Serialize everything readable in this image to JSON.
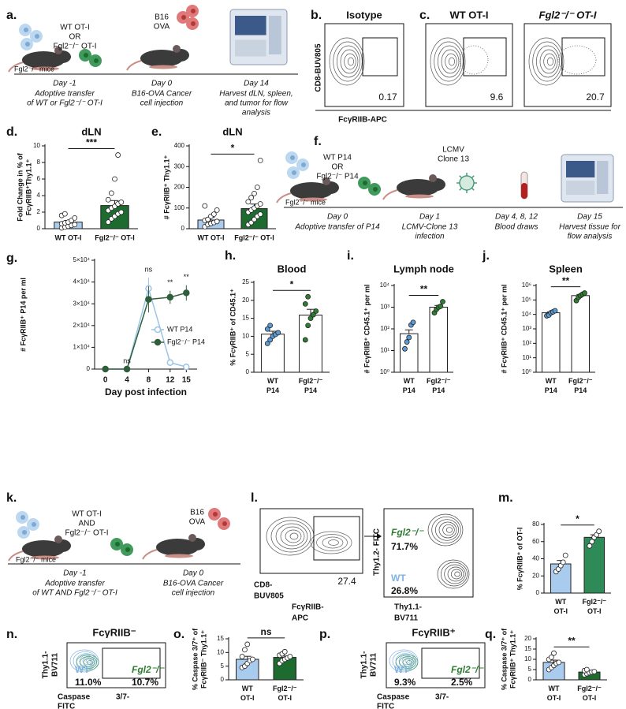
{
  "panel_labels": [
    "a.",
    "b.",
    "c.",
    "d.",
    "e.",
    "f.",
    "g.",
    "h.",
    "i.",
    "j.",
    "k.",
    "l.",
    "m.",
    "n.",
    "o.",
    "p.",
    "q."
  ],
  "schematic_a": {
    "donor": [
      "WT OT-I",
      "OR",
      "Fgl2⁻/⁻ OT-I"
    ],
    "host": "Fgl2⁻/⁻ mice",
    "tumor": [
      "B16",
      "OVA"
    ],
    "timeline": [
      {
        "day": "Day -1",
        "text": [
          "Adoptive transfer",
          "of WT or Fgl2⁻/⁻ OT-I"
        ]
      },
      {
        "day": "Day 0",
        "text": [
          "B16-OVA Cancer",
          "cell injection"
        ]
      },
      {
        "day": "Day 14",
        "text": [
          "Harvest dLN, spleen,",
          "and tumor for flow",
          "analysis"
        ]
      }
    ]
  },
  "flow_bc": {
    "ylabel": "CD8-BUV805",
    "xlabel": "FcγRIIB-APC",
    "plots": [
      {
        "title": "Isotype",
        "gate": "0.17"
      },
      {
        "title": "WT OT-I",
        "gate": "9.6"
      },
      {
        "title": "Fgl2⁻/⁻ OT-I",
        "gate": "20.7"
      }
    ]
  },
  "schematic_f": {
    "donor": [
      "WT P14",
      "OR",
      "Fgl2⁻/⁻ P14"
    ],
    "host": "Fgl2⁻/⁻ mice",
    "virus": [
      "LCMV",
      "Clone 13"
    ],
    "timeline": [
      {
        "day": "Day 0",
        "text": [
          "Adoptive transfer of P14"
        ]
      },
      {
        "day": "Day 1",
        "text": [
          "LCMV-Clone 13",
          "infection"
        ]
      },
      {
        "day": "Day 4, 8, 12",
        "text": [
          "Blood draws"
        ]
      },
      {
        "day": "Day 15",
        "text": [
          "Harvest tissue for",
          "flow analysis"
        ]
      }
    ]
  },
  "schematic_k": {
    "donor": [
      "WT OT-I",
      "AND",
      "Fgl2⁻/⁻ OT-I"
    ],
    "host": "Fgl2⁻/⁻ mice",
    "tumor": [
      "B16",
      "OVA"
    ],
    "timeline": [
      {
        "day": "Day -1",
        "text": [
          "Adoptive transfer",
          "of WT AND Fgl2⁻/⁻ OT-I"
        ]
      },
      {
        "day": "Day 0",
        "text": [
          "B16-OVA Cancer",
          "cell injection"
        ]
      }
    ]
  },
  "flow_l": {
    "ylabel": [
      "CD8-",
      "BUV805"
    ],
    "xlabel": [
      "FcγRIIB-",
      "APC"
    ],
    "gate": "27.4",
    "ylabel2": "Thy1.2- FITC",
    "xlabel2": [
      "Thy1.1-",
      "BV711"
    ],
    "populations": [
      {
        "name": "Fgl2⁻/⁻",
        "pct": "71.7%"
      },
      {
        "name": "WT",
        "pct": "26.8%"
      }
    ]
  },
  "flow_np": {
    "ylabel": [
      "Thy1.1-",
      "BV711"
    ],
    "xlabel": [
      "Caspase",
      "3/7-",
      "FITC"
    ],
    "plots": [
      {
        "title": "FcγRIIB⁻",
        "populations": [
          {
            "name": "WT",
            "pct": "11.0%"
          },
          {
            "name": "Fgl2⁻/⁻",
            "pct": "10.7%"
          }
        ]
      },
      {
        "title": "FcγRIIB⁺",
        "populations": [
          {
            "name": "WT",
            "pct": "9.3%"
          },
          {
            "name": "Fgl2⁻/⁻",
            "pct": "2.5%"
          }
        ]
      }
    ]
  },
  "chart_data": [
    {
      "type": "bar",
      "title": "dLN",
      "ylabel": [
        "Fold Change in % of",
        "FcγRIIB⁺Thy1.1⁺"
      ],
      "categories": [
        "WT OT-I",
        "Fgl2⁻/⁻ OT-I"
      ],
      "values": [
        0.8,
        2.8
      ],
      "errors": [
        0.2,
        0.6
      ],
      "points": [
        [
          0.1,
          0.2,
          0.3,
          0.4,
          0.5,
          0.6,
          0.7,
          0.8,
          1.0,
          1.3,
          1.6,
          1.8
        ],
        [
          0.8,
          1.2,
          1.5,
          1.8,
          2.0,
          2.2,
          2.5,
          2.7,
          3.0,
          3.2,
          3.5,
          4.3,
          6.0,
          8.9
        ]
      ],
      "colors": [
        "#a9cbee",
        "#1e6b30"
      ],
      "dot_colors": [
        "#ffffff",
        "#ffffff"
      ],
      "ylim": [
        0,
        10
      ],
      "yticks": [
        0,
        2,
        4,
        6,
        8,
        10
      ],
      "significance": "***"
    },
    {
      "type": "bar",
      "title": "dLN",
      "ylabel": [
        "# FcγRIIB⁺ Thy1.1⁺"
      ],
      "categories": [
        "WT OT-I",
        "Fgl2⁻/⁻ OT-I"
      ],
      "values": [
        42,
        97
      ],
      "errors": [
        12,
        22
      ],
      "points": [
        [
          10,
          20,
          25,
          30,
          35,
          40,
          45,
          60,
          70,
          90,
          110
        ],
        [
          20,
          30,
          45,
          60,
          70,
          80,
          90,
          100,
          110,
          120,
          130,
          150,
          170,
          200,
          330
        ]
      ],
      "colors": [
        "#a9cbee",
        "#1e6b30"
      ],
      "dot_colors": [
        "#ffffff",
        "#ffffff"
      ],
      "ylim": [
        0,
        400
      ],
      "yticks": [
        0,
        100,
        200,
        300,
        400
      ],
      "significance": "*"
    },
    {
      "type": "line",
      "ylabel": [
        "# FcγRIIB⁺ P14 per ml"
      ],
      "xlabel": "Day post infection",
      "x": [
        0,
        4,
        8,
        12,
        15
      ],
      "series": [
        {
          "name": "WT P14",
          "color": "#9cc3e6",
          "marker": "open",
          "values": [
            0,
            0,
            37000,
            3000,
            1000
          ],
          "errors": [
            0,
            0,
            5000,
            1500,
            500
          ]
        },
        {
          "name": "Fgl2⁻/⁻ P14",
          "color": "#2f5e3b",
          "marker": "filled",
          "values": [
            0,
            0,
            32000,
            33000,
            35000
          ],
          "errors": [
            0,
            0,
            6000,
            3000,
            3500
          ]
        }
      ],
      "xlim": [
        -2,
        17
      ],
      "ylim": [
        0,
        50000
      ],
      "xticks": [
        0,
        4,
        8,
        12,
        15
      ],
      "yticks": [
        0,
        {
          "value": 10000,
          "label": "1×10⁴"
        },
        {
          "value": 20000,
          "label": "2×10⁴"
        },
        {
          "value": 30000,
          "label": "3×10⁴"
        },
        {
          "value": 40000,
          "label": "4×10⁴"
        },
        {
          "value": 50000,
          "label": "5×10⁴"
        }
      ],
      "annotations": [
        {
          "x": 4,
          "text": "ns"
        },
        {
          "x": 8,
          "text": "ns"
        },
        {
          "x": 12,
          "text": "**"
        },
        {
          "x": 15,
          "text": "**"
        }
      ],
      "legend": "right"
    },
    {
      "type": "bar",
      "title": "Blood",
      "ylabel": [
        "% FcγRIIB⁺ of CD45.1⁺"
      ],
      "categories": [
        "WT P14",
        "Fgl2⁻/⁻ P14"
      ],
      "values": [
        10.6,
        15.9
      ],
      "errors": [
        0.8,
        1.6
      ],
      "points": [
        [
          8,
          9,
          10,
          10.5,
          11,
          12,
          13
        ],
        [
          9,
          13,
          15,
          16,
          17,
          19,
          21
        ]
      ],
      "colors": [
        "#ffffff",
        "#ffffff"
      ],
      "dot_colors": [
        "#5b9bd5",
        "#2e7d32"
      ],
      "ylim": [
        0,
        25
      ],
      "yticks": [
        0,
        5,
        10,
        15,
        20,
        25
      ],
      "significance": "*"
    },
    {
      "type": "bar",
      "title": "Lymph node",
      "ylabel": [
        "# FcγRIIB⁺ CD45.1⁺ per ml"
      ],
      "categories": [
        "WT P14",
        "Fgl2⁻/⁻ P14"
      ],
      "values": [
        60,
        1000
      ],
      "errors": [
        30,
        200
      ],
      "points": [
        [
          12,
          25,
          40,
          150,
          200
        ],
        [
          550,
          800,
          1000,
          1100,
          1800
        ]
      ],
      "colors": [
        "#ffffff",
        "#ffffff"
      ],
      "dot_colors": [
        "#5b9bd5",
        "#2e7d32"
      ],
      "log_scale": true,
      "ylim": [
        1,
        10000
      ],
      "yticks": [
        {
          "value": 1,
          "label": "10⁰"
        },
        {
          "value": 10,
          "label": "10¹"
        },
        {
          "value": 100,
          "label": "10²"
        },
        {
          "value": 1000,
          "label": "10³"
        },
        {
          "value": 10000,
          "label": "10⁴"
        }
      ],
      "significance": "**"
    },
    {
      "type": "bar",
      "title": "Spleen",
      "ylabel": [
        "# FcγRIIB⁺ CD45.1⁺ per ml"
      ],
      "categories": [
        "WT P14",
        "Fgl2⁻/⁻ P14"
      ],
      "values": [
        13000,
        200000
      ],
      "errors": [
        2000,
        40000
      ],
      "points": [
        [
          8000,
          9000,
          13000,
          15000,
          18000
        ],
        [
          90000,
          150000,
          200000,
          250000,
          300000
        ]
      ],
      "colors": [
        "#ffffff",
        "#ffffff"
      ],
      "dot_colors": [
        "#5b9bd5",
        "#2e7d32"
      ],
      "log_scale": true,
      "ylim": [
        1,
        1000000
      ],
      "yticks": [
        {
          "value": 1,
          "label": "10⁰"
        },
        {
          "value": 10,
          "label": "10¹"
        },
        {
          "value": 100,
          "label": "10²"
        },
        {
          "value": 1000,
          "label": "10³"
        },
        {
          "value": 10000,
          "label": "10⁴"
        },
        {
          "value": 100000,
          "label": "10⁵"
        },
        {
          "value": 1000000,
          "label": "10⁶"
        }
      ],
      "significance": "**"
    },
    {
      "type": "bar",
      "ylabel": [
        "% FcγRIIB⁺ of OT-I"
      ],
      "categories": [
        "WT OT-I",
        "Fgl2⁻/⁻ OT-I"
      ],
      "values": [
        34,
        65
      ],
      "errors": [
        4,
        3
      ],
      "points": [
        [
          25,
          28,
          32,
          36,
          44
        ],
        [
          55,
          60,
          65,
          68,
          72
        ]
      ],
      "colors": [
        "#a9cbee",
        "#2e8b57"
      ],
      "dot_colors": [
        "#ffffff",
        "#ffffff"
      ],
      "ylim": [
        0,
        80
      ],
      "yticks": [
        0,
        20,
        40,
        60,
        80
      ],
      "significance": "*"
    },
    {
      "type": "bar",
      "ylabel": [
        "% Caspase 3/7⁺ of",
        "FcγRIIB⁻ Thy1.1⁺"
      ],
      "categories": [
        "WT OT-I",
        "Fgl2⁻/⁻ OT-I"
      ],
      "values": [
        7.5,
        8.2
      ],
      "errors": [
        1.1,
        0.5
      ],
      "points": [
        [
          4.5,
          5,
          6,
          7,
          7.5,
          8.5,
          11,
          13
        ],
        [
          6,
          7,
          7.5,
          8,
          8.5,
          9,
          9.5,
          10.3
        ]
      ],
      "colors": [
        "#a9cbee",
        "#1e6b30"
      ],
      "dot_colors": [
        "#ffffff",
        "#ffffff"
      ],
      "ylim": [
        0,
        15
      ],
      "yticks": [
        0,
        5,
        10,
        15
      ],
      "significance": "ns"
    },
    {
      "type": "bar",
      "ylabel": [
        "% Caspase 3/7⁺ of",
        "FcγRIIB⁺ Thy1.1⁺"
      ],
      "categories": [
        "WT OT-I",
        "Fgl2⁻/⁻ OT-I"
      ],
      "values": [
        8.5,
        3.8
      ],
      "errors": [
        1.1,
        0.4
      ],
      "points": [
        [
          5,
          6,
          7,
          8,
          8.5,
          10,
          11,
          13
        ],
        [
          2.5,
          3,
          3.5,
          3.8,
          4,
          4.5,
          5
        ]
      ],
      "colors": [
        "#a9cbee",
        "#1e6b30"
      ],
      "dot_colors": [
        "#ffffff",
        "#ffffff"
      ],
      "ylim": [
        0,
        20
      ],
      "yticks": [
        0,
        5,
        10,
        15,
        20
      ],
      "significance": "**"
    }
  ]
}
